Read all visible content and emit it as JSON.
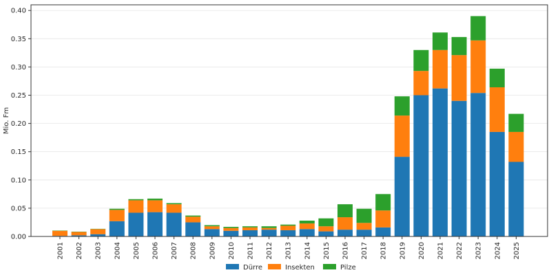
{
  "chart_data": {
    "type": "bar",
    "stacked": true,
    "title": "",
    "xlabel": "",
    "ylabel": "Mio. Fm",
    "ylim": [
      0,
      0.41
    ],
    "yticks": [
      "0.00",
      "0.05",
      "0.10",
      "0.15",
      "0.20",
      "0.25",
      "0.30",
      "0.35",
      "0.40"
    ],
    "grid": "horizontal",
    "legend_position": "bottom-center",
    "categories": [
      "2001",
      "2002",
      "2003",
      "2004",
      "2005",
      "2006",
      "2007",
      "2008",
      "2009",
      "2010",
      "2011",
      "2012",
      "2013",
      "2014",
      "2015",
      "2016",
      "2017",
      "2018",
      "2019",
      "2020",
      "2021",
      "2022",
      "2023",
      "2024",
      "2025"
    ],
    "series": [
      {
        "name": "Dürre",
        "color": "#1f77b4",
        "values": [
          0.001,
          0.002,
          0.004,
          0.027,
          0.042,
          0.043,
          0.042,
          0.025,
          0.013,
          0.01,
          0.011,
          0.012,
          0.011,
          0.013,
          0.009,
          0.012,
          0.012,
          0.016,
          0.141,
          0.25,
          0.262,
          0.24,
          0.254,
          0.185,
          0.132
        ]
      },
      {
        "name": "Insekten",
        "color": "#ff7f0e",
        "values": [
          0.009,
          0.006,
          0.009,
          0.02,
          0.022,
          0.021,
          0.015,
          0.01,
          0.005,
          0.005,
          0.005,
          0.003,
          0.008,
          0.01,
          0.009,
          0.022,
          0.012,
          0.03,
          0.073,
          0.043,
          0.068,
          0.081,
          0.093,
          0.079,
          0.053
        ]
      },
      {
        "name": "Pilze",
        "color": "#2ca02c",
        "values": [
          0.0005,
          0.0005,
          0.0005,
          0.002,
          0.002,
          0.003,
          0.002,
          0.002,
          0.002,
          0.002,
          0.002,
          0.003,
          0.002,
          0.005,
          0.014,
          0.023,
          0.025,
          0.029,
          0.034,
          0.037,
          0.031,
          0.032,
          0.043,
          0.033,
          0.032
        ]
      }
    ]
  }
}
